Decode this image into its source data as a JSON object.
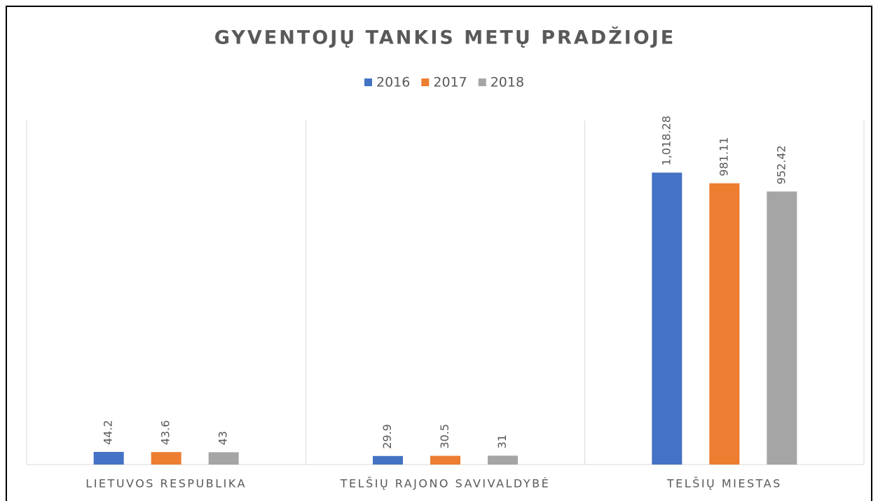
{
  "chart_data": {
    "type": "bar",
    "title": "GYVENTOJŲ TANKIS METŲ PRADŽIOJE",
    "categories": [
      "LIETUVOS RESPUBLIKA",
      "TELŠIŲ RAJONO SAVIVALDYBĖ",
      "TELŠIŲ MIESTAS"
    ],
    "series": [
      {
        "name": "2016",
        "color": "#4472c4",
        "values": [
          44.2,
          29.9,
          1018.28
        ],
        "value_labels": [
          "44.2",
          "29.9",
          "1,018.28"
        ]
      },
      {
        "name": "2017",
        "color": "#ed7d31",
        "values": [
          43.6,
          30.5,
          981.11
        ]
      },
      {
        "name": "2018",
        "color": "#a5a5a5",
        "values": [
          43,
          31,
          952.42
        ]
      }
    ],
    "ylim": [
      0,
      1200
    ],
    "legend": "top"
  }
}
